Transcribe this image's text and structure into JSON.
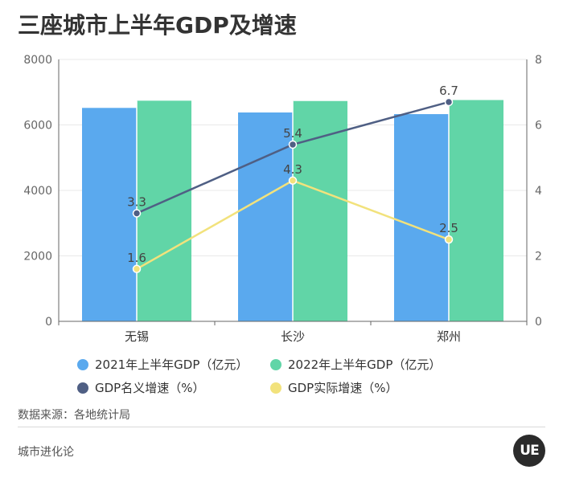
{
  "header": {
    "title": "三座城市上半年GDP及增速"
  },
  "footer": {
    "source": "数据来源：各地统计局",
    "brand": "城市进化论",
    "logo_text": "UE"
  },
  "colors": {
    "gdp2021": "#5aa9ee",
    "gdp2022": "#61d5a7",
    "nominal": "#4f5f84",
    "real": "#f2e27c",
    "axis": "#666666",
    "grid": "#e8e8e8"
  },
  "chart_data": {
    "type": "bar",
    "title": "三座城市上半年GDP及增速",
    "categories": [
      "无锡",
      "长沙",
      "郑州"
    ],
    "series": [
      {
        "name": "2021年上半年GDP（亿元）",
        "kind": "bar",
        "axis": "left",
        "values": [
          6520,
          6380,
          6330
        ]
      },
      {
        "name": "2022年上半年GDP（亿元）",
        "kind": "bar",
        "axis": "left",
        "values": [
          6740,
          6730,
          6760
        ]
      },
      {
        "name": "GDP名义增速（%）",
        "kind": "line",
        "axis": "right",
        "values": [
          3.3,
          5.4,
          6.7
        ],
        "labels": [
          "3.3",
          "5.4",
          "6.7"
        ]
      },
      {
        "name": "GDP实际增速（%）",
        "kind": "line",
        "axis": "right",
        "values": [
          1.6,
          4.3,
          2.5
        ],
        "labels": [
          "1.6",
          "4.3",
          "2.5"
        ]
      }
    ],
    "left_axis": {
      "min": 0,
      "max": 8000,
      "ticks": [
        0,
        2000,
        4000,
        6000,
        8000
      ],
      "tick_labels": [
        "0",
        "2000",
        "4000",
        "6000",
        "8000"
      ]
    },
    "right_axis": {
      "min": 0,
      "max": 8,
      "ticks": [
        0,
        2,
        4,
        6,
        8
      ],
      "tick_labels": [
        "0",
        "2",
        "4",
        "6",
        "8"
      ]
    },
    "legend_position": "bottom"
  }
}
